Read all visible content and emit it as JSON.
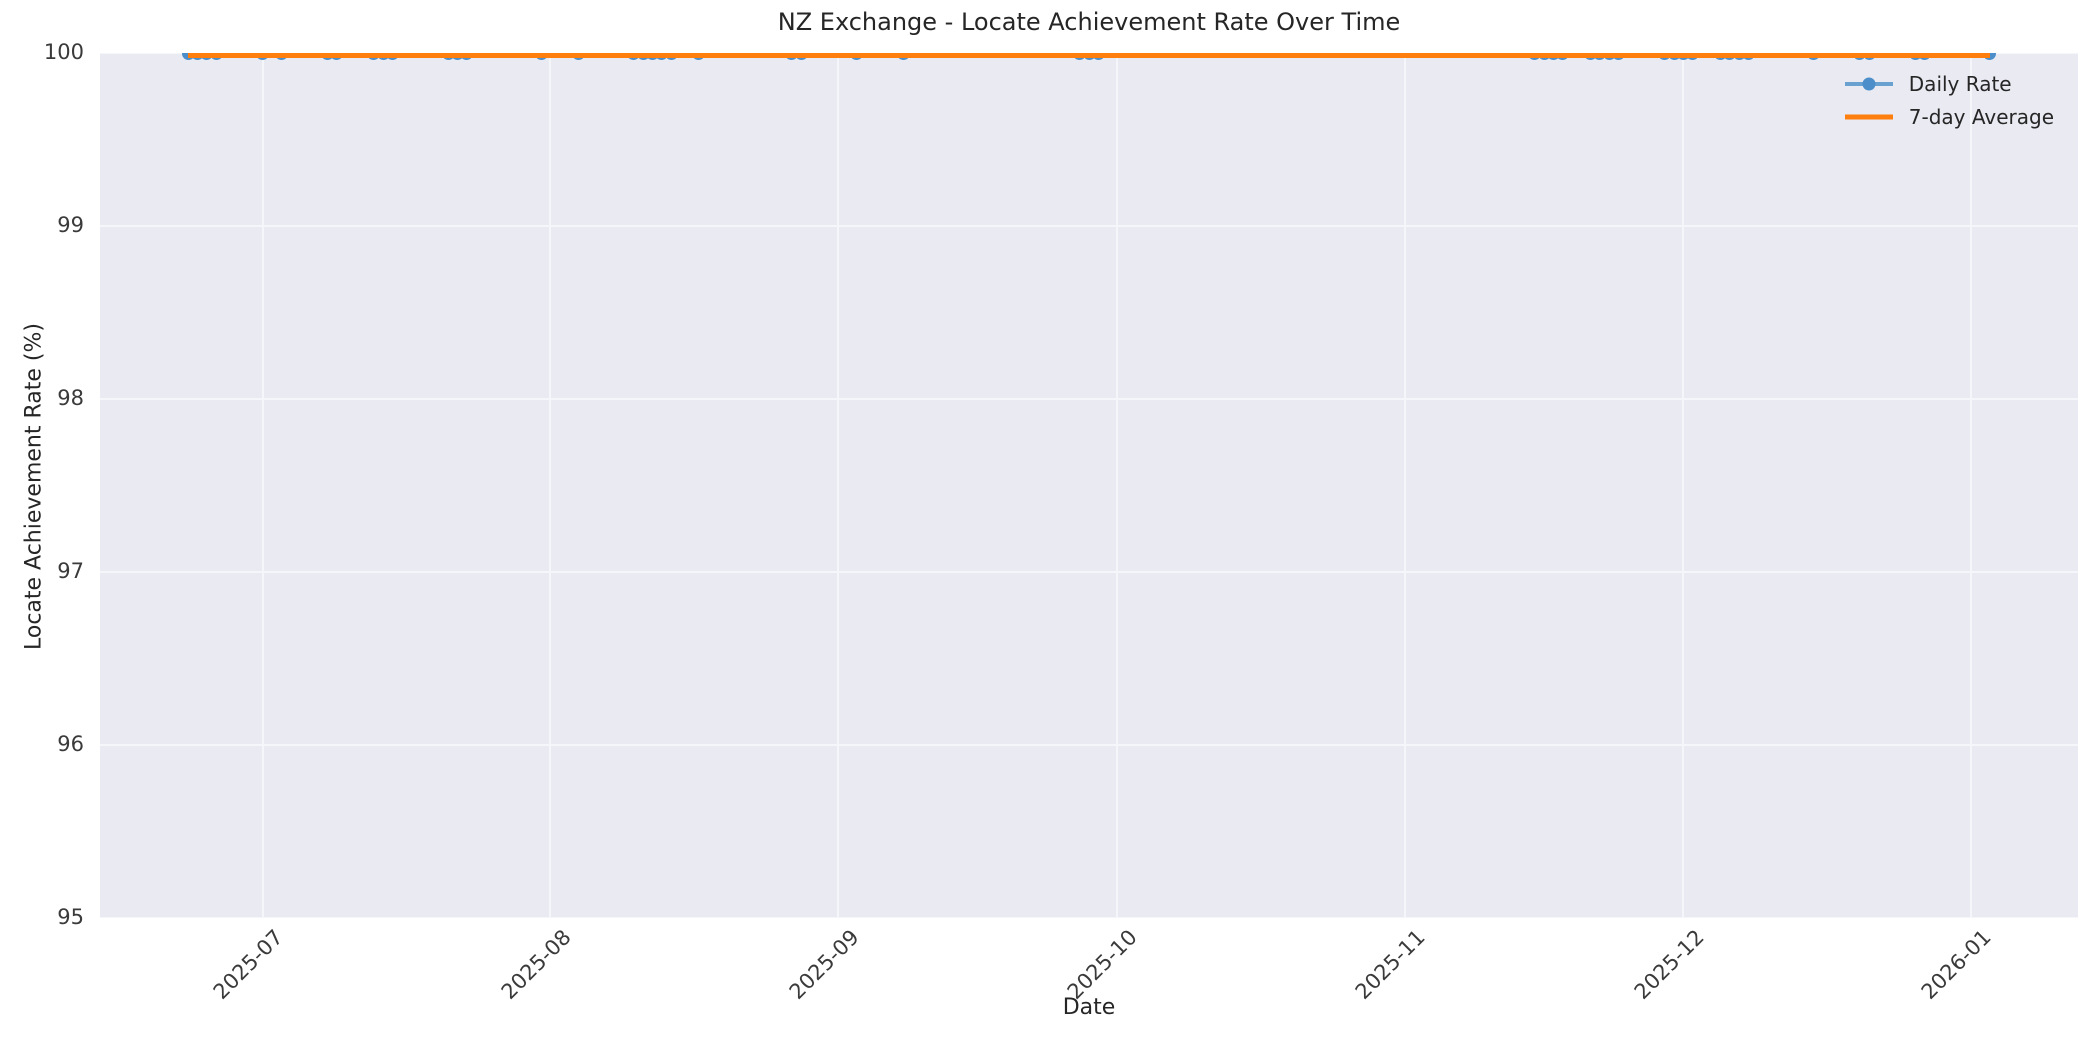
{
  "figure": {
    "background": "#ffffff",
    "plot_background": "#e9eaf2",
    "grid_color": "#f5f6fa",
    "text_color": "#262626"
  },
  "chart_data": {
    "type": "line",
    "title": "NZ Exchange - Locate Achievement Rate Over Time",
    "xlabel": "Date",
    "ylabel": "Locate Achievement Rate (%)",
    "ylim": [
      95,
      100
    ],
    "grid": true,
    "x_domain_start": "2025-06-13T12:00:00Z",
    "x_domain_end": "2026-01-12T12:00:00Z",
    "y_ticks": [
      100,
      99,
      98,
      97,
      96,
      95
    ],
    "x_ticks": [
      {
        "label": "2025-07",
        "date": "2025-07-01T00:00:00Z"
      },
      {
        "label": "2025-08",
        "date": "2025-08-01T00:00:00Z"
      },
      {
        "label": "2025-09",
        "date": "2025-09-01T00:00:00Z"
      },
      {
        "label": "2025-10",
        "date": "2025-10-01T00:00:00Z"
      },
      {
        "label": "2025-11",
        "date": "2025-11-01T00:00:00Z"
      },
      {
        "label": "2025-12",
        "date": "2025-12-01T00:00:00Z"
      },
      {
        "label": "2026-01",
        "date": "2026-01-01T00:00:00Z"
      }
    ],
    "legend_position": "upper right",
    "series": [
      {
        "name": "Daily Rate",
        "style": "line_with_markers",
        "marker_color": "#4b8ec9",
        "line_color": "#69a2d0",
        "value_constant": 100.0,
        "start_date": "2025-06-23",
        "end_date": "2026-01-03",
        "marker_dates": [
          "2025-06-23",
          "2025-06-24",
          "2025-06-25",
          "2025-06-26",
          "2025-07-01",
          "2025-07-03",
          "2025-07-08",
          "2025-07-09",
          "2025-07-13",
          "2025-07-14",
          "2025-07-15",
          "2025-07-21",
          "2025-07-22",
          "2025-07-23",
          "2025-07-31",
          "2025-08-04",
          "2025-08-10",
          "2025-08-11",
          "2025-08-12",
          "2025-08-13",
          "2025-08-14",
          "2025-08-17",
          "2025-08-27",
          "2025-08-28",
          "2025-09-03",
          "2025-09-08",
          "2025-09-27",
          "2025-09-28",
          "2025-09-29",
          "2025-11-15",
          "2025-11-16",
          "2025-11-17",
          "2025-11-18",
          "2025-11-21",
          "2025-11-22",
          "2025-11-23",
          "2025-11-24",
          "2025-11-29",
          "2025-11-30",
          "2025-12-01",
          "2025-12-02",
          "2025-12-05",
          "2025-12-06",
          "2025-12-07",
          "2025-12-08",
          "2025-12-15",
          "2025-12-20",
          "2025-12-21",
          "2025-12-26",
          "2025-12-27",
          "2026-01-03"
        ]
      },
      {
        "name": "7-day Average",
        "style": "line",
        "line_color": "#ff7f0e",
        "value_constant": 100.0,
        "start_date": "2025-06-23",
        "end_date": "2026-01-03"
      }
    ]
  }
}
